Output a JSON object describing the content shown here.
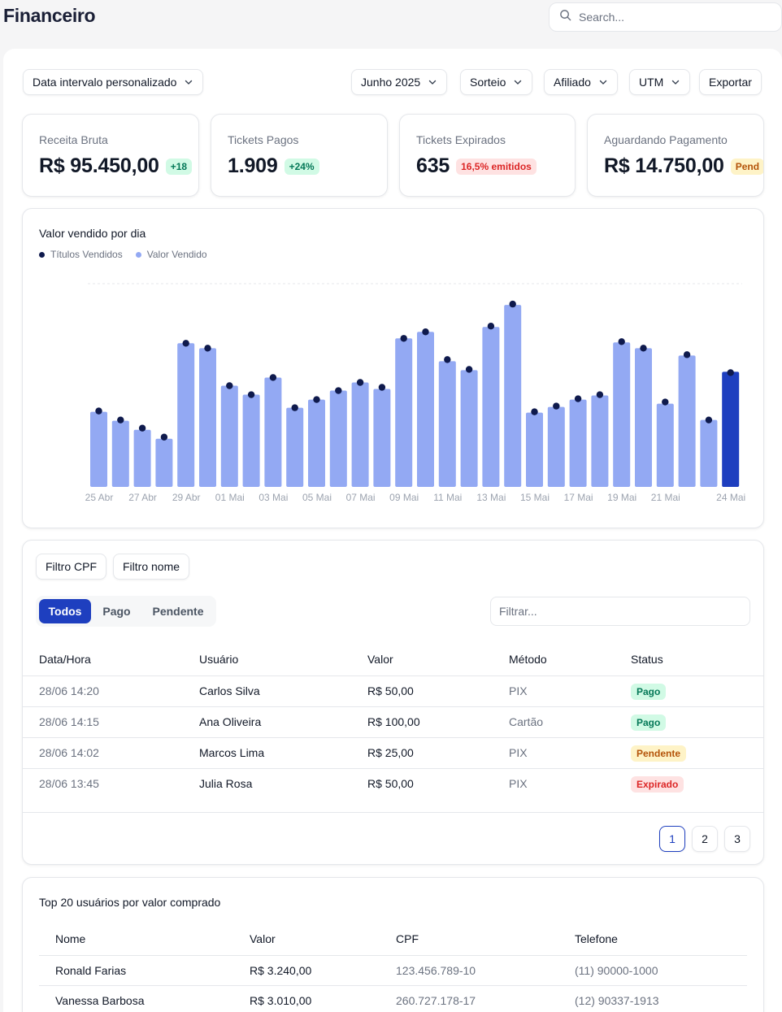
{
  "header": {
    "title": "Financeiro",
    "search_placeholder": "Search..."
  },
  "filters": {
    "date_range": "Data intervalo personalizado",
    "month": "Junho 2025",
    "raffle": "Sorteio",
    "affiliate": "Afiliado",
    "utm": "UTM",
    "export": "Exportar"
  },
  "kpis": [
    {
      "label": "Receita Bruta",
      "value": "R$ 95.450,00",
      "badge": "+18",
      "badge_color": "#047857"
    },
    {
      "label": "Tickets Pagos",
      "value": "1.909",
      "badge": "+24%",
      "badge_color": "#047857"
    },
    {
      "label": "Tickets Expirados",
      "value": "635",
      "badge": "16,5% emitidos",
      "badge_color": "#dc2626"
    },
    {
      "label": "Aguardando Pagamento",
      "value": "R$ 14.750,00",
      "badge": "Pend",
      "badge_color": "#b45309"
    }
  ],
  "chart_data": {
    "type": "bar",
    "title": "Valor vendido por dia",
    "legend": [
      "Títulos Vendidos",
      "Valor Vendido"
    ],
    "legend_placement": "top-left",
    "grid": false,
    "colors": {
      "bar": "#93a9f3",
      "bar_highlight": "#1e3fbf",
      "dot": "#0f1a4d"
    },
    "x_tick_labels": [
      "25 Abr",
      "27 Abr",
      "29 Abr",
      "01 Mai",
      "03 Mai",
      "05 Mai",
      "07 Mai",
      "09 Mai",
      "11 Mai",
      "13 Mai",
      "15 Mai",
      "17 Mai",
      "19 Mai",
      "21 Mai",
      "24 Mai"
    ],
    "series": [
      {
        "name": "Valor Vendido",
        "values": [
          92,
          81,
          70,
          59,
          176,
          170,
          124,
          113,
          134,
          97,
          107,
          118,
          128,
          120,
          182,
          190,
          154,
          143,
          196,
          223,
          91,
          98,
          107,
          112,
          177,
          170,
          102,
          161,
          82,
          141
        ]
      },
      {
        "name": "Títulos Vendidos",
        "values": [
          93,
          82,
          72,
          61,
          176,
          170,
          124,
          113,
          134,
          97,
          107,
          118,
          128,
          122,
          182,
          190,
          156,
          144,
          197,
          224,
          92,
          99,
          108,
          113,
          178,
          170,
          104,
          162,
          82,
          140
        ]
      }
    ],
    "highlight_index": 29
  },
  "transactions": {
    "filter_buttons": [
      "Filtro CPF",
      "Filtro nome"
    ],
    "tabs": [
      "Todos",
      "Pago",
      "Pendente"
    ],
    "active_tab": "Todos",
    "filter_placeholder": "Filtrar...",
    "columns": [
      "Data/Hora",
      "Usuário",
      "Valor",
      "Método",
      "Status"
    ],
    "rows": [
      {
        "datetime": "28/06 14:20",
        "user": "Carlos Silva",
        "value": "R$ 50,00",
        "method": "PIX",
        "status": "Pago"
      },
      {
        "datetime": "28/06 14:15",
        "user": "Ana Oliveira",
        "value": "R$ 100,00",
        "method": "Cartão",
        "status": "Pago"
      },
      {
        "datetime": "28/06 14:02",
        "user": "Marcos Lima",
        "value": "R$ 25,00",
        "method": "PIX",
        "status": "Pendente"
      },
      {
        "datetime": "28/06 13:45",
        "user": "Julia Rosa",
        "value": "R$ 50,00",
        "method": "PIX",
        "status": "Expirado"
      }
    ],
    "pages": [
      "1",
      "2",
      "3"
    ],
    "current_page": "1",
    "status_colors": {
      "Pago": {
        "bg": "#d1fae5",
        "fg": "#047857"
      },
      "Pendente": {
        "bg": "#fef3c7",
        "fg": "#b45309"
      },
      "Expirado": {
        "bg": "#fee2e2",
        "fg": "#dc2626"
      }
    }
  },
  "top_users": {
    "title": "Top 20 usuários por valor comprado",
    "columns": [
      "Nome",
      "Valor",
      "CPF",
      "Telefone"
    ],
    "rows": [
      {
        "name": "Ronald Farias",
        "value": "R$ 3.240,00",
        "cpf": "123.456.789-10",
        "phone": "(11) 90000-1000"
      },
      {
        "name": "Vanessa Barbosa",
        "value": "R$ 3.010,00",
        "cpf": "260.727.178-17",
        "phone": "(12) 90337-1913"
      }
    ]
  }
}
